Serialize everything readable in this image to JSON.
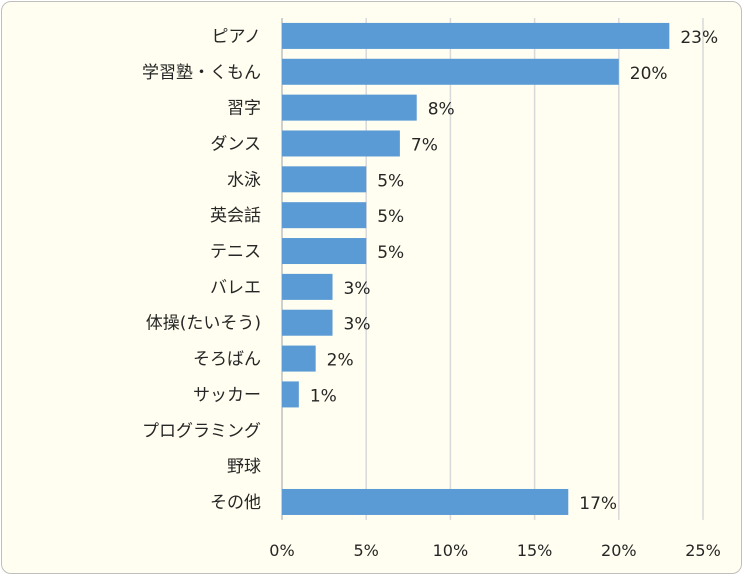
{
  "chart_data": {
    "type": "bar",
    "orientation": "horizontal",
    "categories": [
      "ピアノ",
      "学習塾・くもん",
      "習字",
      "ダンス",
      "水泳",
      "英会話",
      "テニス",
      "バレエ",
      "体操(たいそう)",
      "そろばん",
      "サッカー",
      "プログラミング",
      "野球",
      "その他"
    ],
    "values": [
      23,
      20,
      8,
      7,
      5,
      5,
      5,
      3,
      3,
      2,
      1,
      0,
      0,
      17
    ],
    "value_labels": [
      "23%",
      "20%",
      "8%",
      "7%",
      "5%",
      "5%",
      "5%",
      "3%",
      "3%",
      "2%",
      "1%",
      "",
      "",
      "17%"
    ],
    "xlim": [
      0,
      25
    ],
    "xticks": [
      "0%",
      "5%",
      "10%",
      "15%",
      "20%",
      "25%"
    ],
    "grid": true,
    "bar_color": "#5b9bd5",
    "background_color": "#fffef0",
    "gridline_color": "#d9d9d9"
  }
}
